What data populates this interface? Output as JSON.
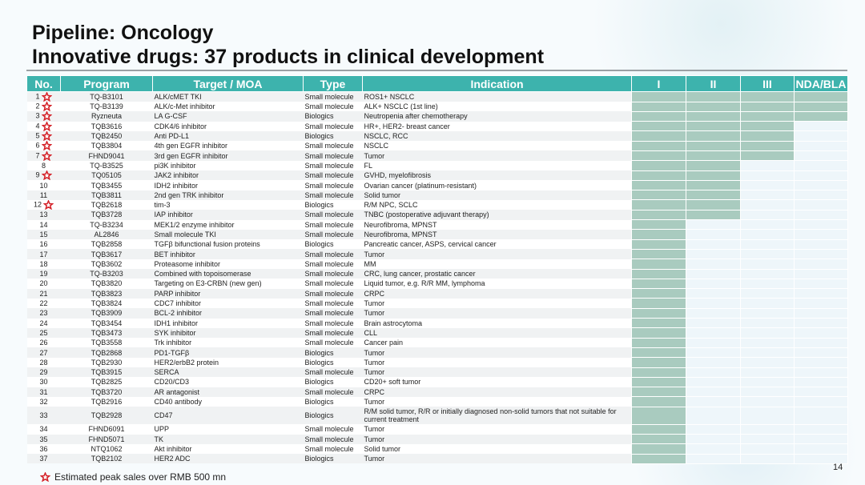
{
  "title_line1": "Pipeline: Oncology",
  "title_line2": "Innovative drugs: 37 products in clinical development",
  "headers": [
    "No.",
    "Program",
    "Target / MOA",
    "Type",
    "Indication",
    "I",
    "II",
    "III",
    "NDA/BLA"
  ],
  "accent": "#3db3ad",
  "bar_color": "#a9cbbf",
  "star_color": "#d42027",
  "rows": [
    {
      "no": "1",
      "star": true,
      "program": "TQ-B3101",
      "target": "ALK/cMET TKI",
      "type": "Small molecule",
      "indication": "ROS1+ NSCLC",
      "phase": 4
    },
    {
      "no": "2",
      "star": true,
      "program": "TQ-B3139",
      "target": "ALK/c-Met inhibitor",
      "type": "Small molecule",
      "indication": "ALK+ NSCLC (1st line)",
      "phase": 4
    },
    {
      "no": "3",
      "star": true,
      "program": "Ryzneuta",
      "target": "LA G-CSF",
      "type": "Biologics",
      "indication": "Neutropenia after chemotherapy",
      "phase": 4
    },
    {
      "no": "4",
      "star": true,
      "program": "TQB3616",
      "target": "CDK4/6 inhibitor",
      "type": "Small molecule",
      "indication": "HR+, HER2- breast cancer",
      "phase": 3
    },
    {
      "no": "5",
      "star": true,
      "program": "TQB2450",
      "target": "Anti PD-L1",
      "type": "Biologics",
      "indication": "NSCLC, RCC",
      "phase": 3
    },
    {
      "no": "6",
      "star": true,
      "program": "TQB3804",
      "target": "4th gen EGFR inhibitor",
      "type": "Small molecule",
      "indication": "NSCLC",
      "phase": 3
    },
    {
      "no": "7",
      "star": true,
      "program": "FHND9041",
      "target": "3rd gen EGFR inhibitor",
      "type": "Small molecule",
      "indication": "Tumor",
      "phase": 3
    },
    {
      "no": "8",
      "star": false,
      "program": "TQ-B3525",
      "target": "pi3K inhibitor",
      "type": "Small molecule",
      "indication": "FL",
      "phase": 2
    },
    {
      "no": "9",
      "star": true,
      "program": "TQ05105",
      "target": "JAK2 inhibitor",
      "type": "Small molecule",
      "indication": "GVHD, myelofibrosis",
      "phase": 2
    },
    {
      "no": "10",
      "star": false,
      "program": "TQB3455",
      "target": "IDH2 inhibitor",
      "type": "Small molecule",
      "indication": "Ovarian cancer (platinum-resistant)",
      "phase": 2
    },
    {
      "no": "11",
      "star": false,
      "program": "TQB3811",
      "target": "2nd gen TRK inhibitor",
      "type": "Small molecule",
      "indication": "Solid tumor",
      "phase": 2
    },
    {
      "no": "12",
      "star": true,
      "program": "TQB2618",
      "target": "tim-3",
      "type": "Biologics",
      "indication": "R/M NPC, SCLC",
      "phase": 2
    },
    {
      "no": "13",
      "star": false,
      "program": "TQB3728",
      "target": "IAP inhibitor",
      "type": "Small molecule",
      "indication": "TNBC (postoperative adjuvant therapy)",
      "phase": 2
    },
    {
      "no": "14",
      "star": false,
      "program": "TQ-B3234",
      "target": "MEK1/2 enzyme inhibitor",
      "type": "Small molecule",
      "indication": "Neurofibroma, MPNST",
      "phase": 1
    },
    {
      "no": "15",
      "star": false,
      "program": "AL2846",
      "target": "Small molecule TKI",
      "type": "Small molecule",
      "indication": "Neurofibroma, MPNST",
      "phase": 1
    },
    {
      "no": "16",
      "star": false,
      "program": "TQB2858",
      "target": "TGFβ bifunctional fusion proteins",
      "type": "Biologics",
      "indication": "Pancreatic cancer, ASPS, cervical cancer",
      "phase": 1
    },
    {
      "no": "17",
      "star": false,
      "program": "TQB3617",
      "target": "BET inhibitor",
      "type": "Small molecule",
      "indication": "Tumor",
      "phase": 1
    },
    {
      "no": "18",
      "star": false,
      "program": "TQB3602",
      "target": "Proteasome inhibitor",
      "type": "Small molecule",
      "indication": "MM",
      "phase": 1
    },
    {
      "no": "19",
      "star": false,
      "program": "TQ-B3203",
      "target": "Combined with topoisomerase",
      "type": "Small molecule",
      "indication": "CRC, lung cancer, prostatic cancer",
      "phase": 1
    },
    {
      "no": "20",
      "star": false,
      "program": "TQB3820",
      "target": "Targeting on E3-CRBN (new gen)",
      "type": "Small molecule",
      "indication": "Liquid tumor, e.g. R/R MM, lymphoma",
      "phase": 1
    },
    {
      "no": "21",
      "star": false,
      "program": "TQB3823",
      "target": "PARP inhibitor",
      "type": "Small molecule",
      "indication": "CRPC",
      "phase": 1
    },
    {
      "no": "22",
      "star": false,
      "program": "TQB3824",
      "target": "CDC7 inhibitor",
      "type": "Small molecule",
      "indication": "Tumor",
      "phase": 1
    },
    {
      "no": "23",
      "star": false,
      "program": "TQB3909",
      "target": "BCL-2 inhibitor",
      "type": "Small molecule",
      "indication": "Tumor",
      "phase": 1
    },
    {
      "no": "24",
      "star": false,
      "program": "TQB3454",
      "target": "IDH1 inhibitor",
      "type": "Small molecule",
      "indication": "Brain astrocytoma",
      "phase": 1
    },
    {
      "no": "25",
      "star": false,
      "program": "TQB3473",
      "target": "SYK inhibitor",
      "type": "Small molecule",
      "indication": "CLL",
      "phase": 1
    },
    {
      "no": "26",
      "star": false,
      "program": "TQB3558",
      "target": "Trk inhibitor",
      "type": "Small molecule",
      "indication": "Cancer pain",
      "phase": 1
    },
    {
      "no": "27",
      "star": false,
      "program": "TQB2868",
      "target": "PD1-TGFβ",
      "type": "Biologics",
      "indication": "Tumor",
      "phase": 1
    },
    {
      "no": "28",
      "star": false,
      "program": "TQB2930",
      "target": "HER2/erbB2 protein",
      "type": "Biologics",
      "indication": "Tumor",
      "phase": 1
    },
    {
      "no": "29",
      "star": false,
      "program": "TQB3915",
      "target": "SERCA",
      "type": "Small molecule",
      "indication": "Tumor",
      "phase": 1
    },
    {
      "no": "30",
      "star": false,
      "program": "TQB2825",
      "target": "CD20/CD3",
      "type": "Biologics",
      "indication": "CD20+ soft tumor",
      "phase": 1
    },
    {
      "no": "31",
      "star": false,
      "program": "TQB3720",
      "target": "AR antagonist",
      "type": "Small molecule",
      "indication": "CRPC",
      "phase": 1
    },
    {
      "no": "32",
      "star": false,
      "program": "TQB2916",
      "target": "CD40 antibody",
      "type": "Biologics",
      "indication": "Tumor",
      "phase": 1
    },
    {
      "no": "33",
      "star": false,
      "program": "TQB2928",
      "target": "CD47",
      "type": "Biologics",
      "indication": "R/M solid tumor, R/R or initially diagnosed non-solid tumors that not suitable for current treatment",
      "phase": 1,
      "tall": true
    },
    {
      "no": "34",
      "star": false,
      "program": "FHND6091",
      "target": "UPP",
      "type": "Small molecule",
      "indication": "Tumor",
      "phase": 1
    },
    {
      "no": "35",
      "star": false,
      "program": "FHND5071",
      "target": "TK",
      "type": "Small molecule",
      "indication": "Tumor",
      "phase": 1
    },
    {
      "no": "36",
      "star": false,
      "program": "NTQ1062",
      "target": "Akt inhibitor",
      "type": "Small molecule",
      "indication": "Solid tumor",
      "phase": 1
    },
    {
      "no": "37",
      "star": false,
      "program": "TQB2102",
      "target": "HER2 ADC",
      "type": "Biologics",
      "indication": "Tumor",
      "phase": 1
    }
  ],
  "footer_note": "Estimated peak sales over RMB 500 mn",
  "page_number": "14"
}
